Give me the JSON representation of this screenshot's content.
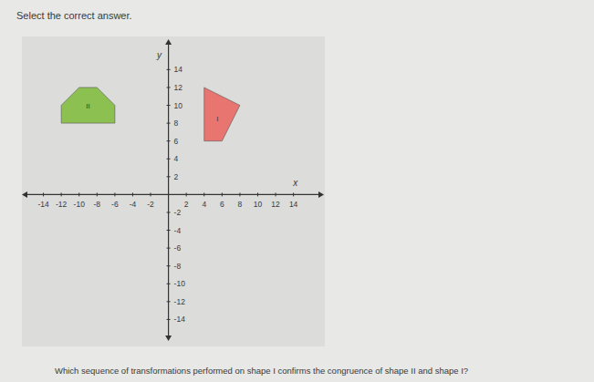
{
  "chart_data": {
    "type": "polygon",
    "title": "Select the correct answer.",
    "annotations": [
      "Which sequence of transformations performed on shape I confirms the congruence of shape II and shape I?"
    ],
    "x_label": "x",
    "y_label": "y",
    "xlim": [
      -16,
      17
    ],
    "ylim": [
      -16,
      17
    ],
    "xticks": [
      -14,
      -12,
      -10,
      -8,
      -6,
      -4,
      -2,
      2,
      4,
      6,
      8,
      10,
      12,
      14
    ],
    "yticks": [
      -14,
      -12,
      -10,
      -8,
      -6,
      -4,
      -2,
      2,
      4,
      6,
      8,
      10,
      12,
      14
    ],
    "grid": false,
    "series": [
      {
        "name": "II",
        "color": "#8cc152",
        "x": [
          -10,
          -8,
          -6,
          -6,
          -12,
          -12
        ],
        "y": [
          12,
          12,
          10,
          8,
          8,
          10
        ]
      },
      {
        "name": "I",
        "color": "#e8756f",
        "x": [
          4,
          8,
          6,
          4
        ],
        "y": [
          12,
          10,
          6,
          6
        ]
      }
    ]
  }
}
